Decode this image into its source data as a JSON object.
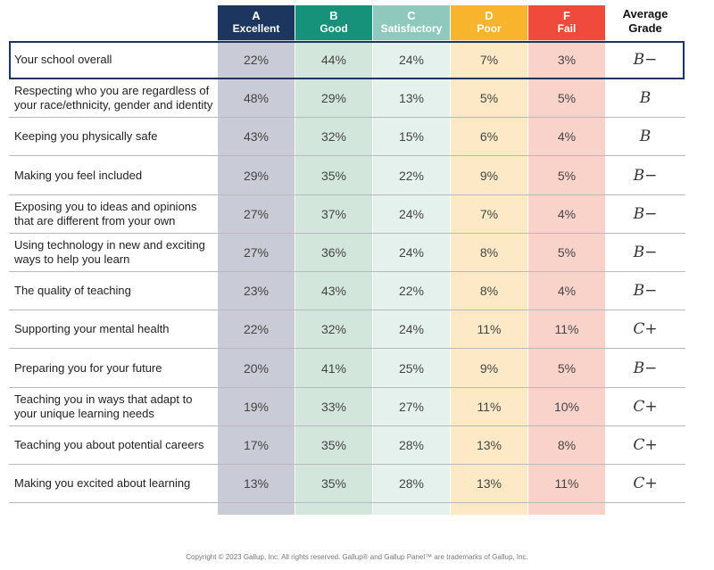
{
  "chart_data": {
    "type": "table",
    "columns": [
      {
        "letter": "A",
        "word": "Excellent",
        "color": "#1d3660"
      },
      {
        "letter": "B",
        "word": "Good",
        "color": "#16927a"
      },
      {
        "letter": "C",
        "word": "Satisfactory",
        "color": "#8fc9bd"
      },
      {
        "letter": "D",
        "word": "Poor",
        "color": "#f7b42c"
      },
      {
        "letter": "F",
        "word": "Fail",
        "color": "#ef4a3c"
      }
    ],
    "average_header": [
      "Average",
      "Grade"
    ],
    "rows": [
      {
        "label": "Your school overall",
        "values": [
          "22%",
          "44%",
          "24%",
          "7%",
          "3%"
        ],
        "grade": "B−",
        "highlight": true
      },
      {
        "label": "Respecting who you are regardless of your race/ethnicity, gender and identity",
        "values": [
          "48%",
          "29%",
          "13%",
          "5%",
          "5%"
        ],
        "grade": "B"
      },
      {
        "label": "Keeping you physically safe",
        "values": [
          "43%",
          "32%",
          "15%",
          "6%",
          "4%"
        ],
        "grade": "B"
      },
      {
        "label": "Making you feel included",
        "values": [
          "29%",
          "35%",
          "22%",
          "9%",
          "5%"
        ],
        "grade": "B−"
      },
      {
        "label": "Exposing you to ideas and opinions that are different from your own",
        "values": [
          "27%",
          "37%",
          "24%",
          "7%",
          "4%"
        ],
        "grade": "B−"
      },
      {
        "label": "Using technology in new and exciting ways to help you learn",
        "values": [
          "27%",
          "36%",
          "24%",
          "8%",
          "5%"
        ],
        "grade": "B−"
      },
      {
        "label": "The quality of teaching",
        "values": [
          "23%",
          "43%",
          "22%",
          "8%",
          "4%"
        ],
        "grade": "B−"
      },
      {
        "label": "Supporting your mental health",
        "values": [
          "22%",
          "32%",
          "24%",
          "11%",
          "11%"
        ],
        "grade": "C+"
      },
      {
        "label": "Preparing you for your future",
        "values": [
          "20%",
          "41%",
          "25%",
          "9%",
          "5%"
        ],
        "grade": "B−"
      },
      {
        "label": "Teaching you in ways that adapt to your unique learning needs",
        "values": [
          "19%",
          "33%",
          "27%",
          "11%",
          "10%"
        ],
        "grade": "C+"
      },
      {
        "label": "Teaching you about potential careers",
        "values": [
          "17%",
          "35%",
          "28%",
          "13%",
          "8%"
        ],
        "grade": "C+"
      },
      {
        "label": "Making you excited about learning",
        "values": [
          "13%",
          "35%",
          "28%",
          "13%",
          "11%"
        ],
        "grade": "C+"
      }
    ]
  },
  "footer": "Copyright © 2023 Gallup, Inc. All rights reserved. Gallup® and Gallup Panel™ are trademarks of Gallup, Inc."
}
